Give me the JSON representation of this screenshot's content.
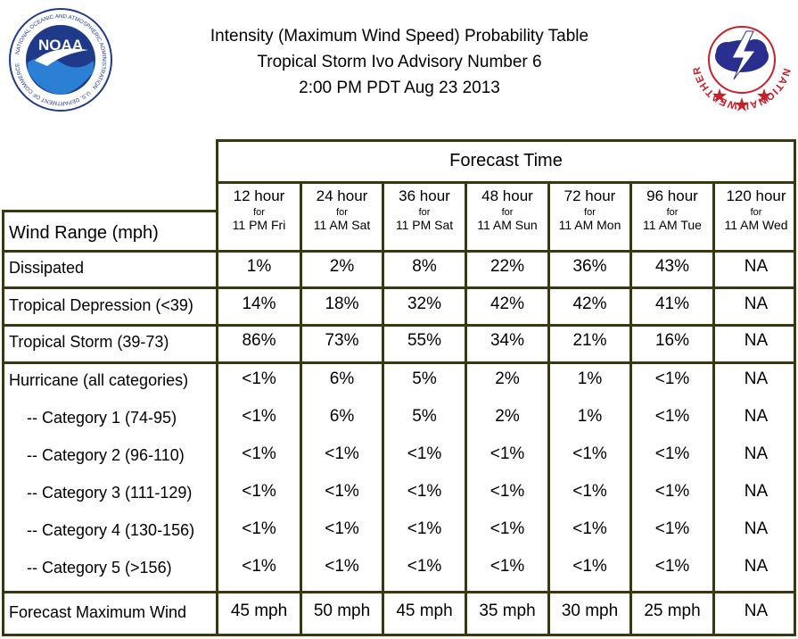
{
  "title": {
    "line1": "Intensity (Maximum Wind Speed) Probability Table",
    "line2": "Tropical Storm Ivo Advisory Number 6",
    "line3": "2:00 PM PDT Aug 23 2013"
  },
  "logos": {
    "noaa": {
      "text": "NOAA",
      "ring": "NATIONAL OCEANIC AND ATMOSPHERIC ADMINISTRATION · U.S. DEPARTMENT OF COMMERCE"
    },
    "nws": {
      "ring": "NATIONAL WEATHER SERVICE"
    }
  },
  "colors": {
    "border": "#3a3810",
    "noaa_blue": "#1f3a8a",
    "nws_red": "#c8202a"
  },
  "table": {
    "forecast_header": "Forecast Time",
    "row_header": "Wind Range (mph)",
    "columns": [
      {
        "hour": "12 hour",
        "for": "for",
        "day": "11 PM Fri"
      },
      {
        "hour": "24 hour",
        "for": "for",
        "day": "11 AM Sat"
      },
      {
        "hour": "36 hour",
        "for": "for",
        "day": "11 PM Sat"
      },
      {
        "hour": "48 hour",
        "for": "for",
        "day": "11 AM Sun"
      },
      {
        "hour": "72 hour",
        "for": "for",
        "day": "11 AM Mon"
      },
      {
        "hour": "96 hour",
        "for": "for",
        "day": "11 AM Tue"
      },
      {
        "hour": "120 hour",
        "for": "for",
        "day": "11 AM Wed"
      }
    ],
    "rows": [
      {
        "label": "Dissipated",
        "values": [
          "1%",
          "2%",
          "8%",
          "22%",
          "36%",
          "43%",
          "NA"
        ]
      },
      {
        "label": "Tropical Depression (<39)",
        "values": [
          "14%",
          "18%",
          "32%",
          "42%",
          "42%",
          "41%",
          "NA"
        ]
      },
      {
        "label": "Tropical Storm (39-73)",
        "values": [
          "86%",
          "73%",
          "55%",
          "34%",
          "21%",
          "16%",
          "NA"
        ]
      },
      {
        "label": "Hurricane (all categories)",
        "values": [
          "<1%",
          "6%",
          "5%",
          "2%",
          "1%",
          "<1%",
          "NA"
        ]
      },
      {
        "label": "-- Category 1 (74-95)",
        "values": [
          "<1%",
          "6%",
          "5%",
          "2%",
          "1%",
          "<1%",
          "NA"
        ]
      },
      {
        "label": "-- Category 2 (96-110)",
        "values": [
          "<1%",
          "<1%",
          "<1%",
          "<1%",
          "<1%",
          "<1%",
          "NA"
        ]
      },
      {
        "label": "-- Category 3 (111-129)",
        "values": [
          "<1%",
          "<1%",
          "<1%",
          "<1%",
          "<1%",
          "<1%",
          "NA"
        ]
      },
      {
        "label": "-- Category 4 (130-156)",
        "values": [
          "<1%",
          "<1%",
          "<1%",
          "<1%",
          "<1%",
          "<1%",
          "NA"
        ]
      },
      {
        "label": "-- Category 5 (>156)",
        "values": [
          "<1%",
          "<1%",
          "<1%",
          "<1%",
          "<1%",
          "<1%",
          "NA"
        ]
      },
      {
        "label": "Forecast Maximum Wind",
        "values": [
          "45 mph",
          "50 mph",
          "45 mph",
          "35 mph",
          "30 mph",
          "25 mph",
          "NA"
        ]
      }
    ]
  }
}
